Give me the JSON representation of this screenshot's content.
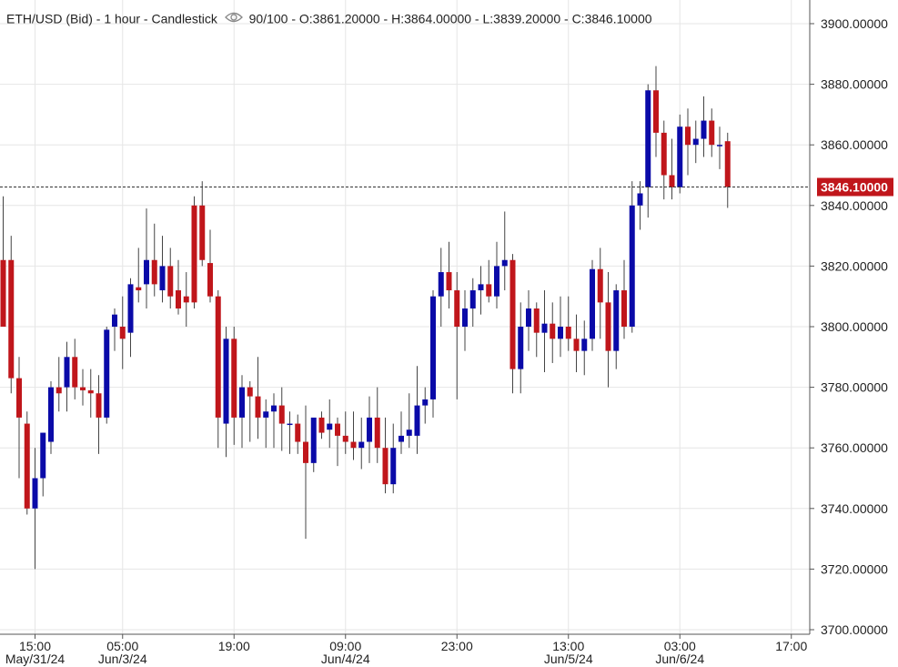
{
  "header": {
    "symbol": "ETH/USD (Bid) - 1 hour - Candlestick",
    "opacity": "90/100",
    "ohlc": "- O:3861.20000 - H:3864.00000 - L:3839.20000 - C:3846.10000",
    "eye_icon": "eye-icon"
  },
  "colors": {
    "up": "#0a0aa8",
    "down": "#c0161b",
    "grid": "#e6e6e6",
    "last_price_bg": "#c0161b"
  },
  "chart_data": {
    "type": "candlestick",
    "ylim": [
      3700,
      3904
    ],
    "y_ticks": [
      "3900.00000",
      "3880.00000",
      "3860.00000",
      "3840.00000",
      "3820.00000",
      "3800.00000",
      "3780.00000",
      "3760.00000",
      "3740.00000",
      "3720.00000",
      "3700.00000"
    ],
    "y_tick_values": [
      3900,
      3880,
      3860,
      3840,
      3820,
      3800,
      3780,
      3760,
      3740,
      3720,
      3700
    ],
    "x_ticks": [
      {
        "index": 4,
        "time": "15:00",
        "date": "May/31/24"
      },
      {
        "index": 15,
        "time": "05:00",
        "date": "Jun/3/24"
      },
      {
        "index": 29,
        "time": "19:00",
        "date": ""
      },
      {
        "index": 43,
        "time": "09:00",
        "date": "Jun/4/24"
      },
      {
        "index": 57,
        "time": "23:00",
        "date": ""
      },
      {
        "index": 71,
        "time": "13:00",
        "date": "Jun/5/24"
      },
      {
        "index": 85,
        "time": "03:00",
        "date": "Jun/6/24"
      },
      {
        "index": 99,
        "time": "17:00",
        "date": ""
      }
    ],
    "last_price": 3846.1,
    "last_price_label": "3846.10000",
    "candles": [
      [
        3822,
        3843,
        3800,
        3800
      ],
      [
        3822,
        3830,
        3778,
        3783
      ],
      [
        3783,
        3790,
        3750,
        3770
      ],
      [
        3768,
        3772,
        3738,
        3740
      ],
      [
        3740,
        3760,
        3720,
        3750
      ],
      [
        3750,
        3765,
        3744,
        3765
      ],
      [
        3762,
        3782,
        3758,
        3780
      ],
      [
        3780,
        3790,
        3772,
        3778
      ],
      [
        3780,
        3795,
        3772,
        3790
      ],
      [
        3790,
        3796,
        3776,
        3780
      ],
      [
        3780,
        3786,
        3774,
        3779
      ],
      [
        3779,
        3786,
        3770,
        3778
      ],
      [
        3778,
        3784,
        3758,
        3770
      ],
      [
        3770,
        3800,
        3768,
        3799
      ],
      [
        3800,
        3806,
        3792,
        3804
      ],
      [
        3800,
        3810,
        3786,
        3796
      ],
      [
        3798,
        3816,
        3790,
        3814
      ],
      [
        3813,
        3826,
        3808,
        3812
      ],
      [
        3814,
        3839,
        3806,
        3822
      ],
      [
        3822,
        3834,
        3810,
        3814
      ],
      [
        3812,
        3830,
        3808,
        3820
      ],
      [
        3820,
        3826,
        3806,
        3810
      ],
      [
        3812,
        3822,
        3804,
        3806
      ],
      [
        3810,
        3818,
        3800,
        3808
      ],
      [
        3840,
        3843,
        3806,
        3808
      ],
      [
        3840,
        3848,
        3820,
        3822
      ],
      [
        3821,
        3832,
        3808,
        3810
      ],
      [
        3810,
        3812,
        3760,
        3770
      ],
      [
        3768,
        3800,
        3757,
        3796
      ],
      [
        3796,
        3800,
        3761,
        3770
      ],
      [
        3770,
        3784,
        3760,
        3780
      ],
      [
        3780,
        3782,
        3762,
        3777
      ],
      [
        3777,
        3790,
        3763,
        3770
      ],
      [
        3770,
        3776,
        3760,
        3772
      ],
      [
        3772,
        3778,
        3760,
        3774
      ],
      [
        3774,
        3780,
        3759,
        3768
      ],
      [
        3768,
        3772,
        3758,
        3768
      ],
      [
        3768,
        3771,
        3758,
        3762
      ],
      [
        3762,
        3774,
        3730,
        3755
      ],
      [
        3755,
        3768,
        3752,
        3770
      ],
      [
        3770,
        3772,
        3763,
        3765
      ],
      [
        3766,
        3776,
        3760,
        3768
      ],
      [
        3768,
        3770,
        3754,
        3764
      ],
      [
        3764,
        3772,
        3758,
        3762
      ],
      [
        3762,
        3772,
        3756,
        3760
      ],
      [
        3760,
        3770,
        3753,
        3762
      ],
      [
        3762,
        3777,
        3755,
        3770
      ],
      [
        3770,
        3780,
        3755,
        3760
      ],
      [
        3760,
        3770,
        3745,
        3748
      ],
      [
        3748,
        3768,
        3745,
        3760
      ],
      [
        3762,
        3772,
        3758,
        3764
      ],
      [
        3764,
        3778,
        3760,
        3766
      ],
      [
        3764,
        3787,
        3758,
        3774
      ],
      [
        3774,
        3780,
        3768,
        3776
      ],
      [
        3776,
        3812,
        3770,
        3810
      ],
      [
        3810,
        3826,
        3800,
        3818
      ],
      [
        3818,
        3828,
        3806,
        3812
      ],
      [
        3812,
        3818,
        3776,
        3800
      ],
      [
        3800,
        3812,
        3792,
        3806
      ],
      [
        3806,
        3816,
        3800,
        3812
      ],
      [
        3812,
        3820,
        3804,
        3814
      ],
      [
        3814,
        3822,
        3808,
        3810
      ],
      [
        3810,
        3828,
        3806,
        3820
      ],
      [
        3820,
        3838,
        3812,
        3822
      ],
      [
        3822,
        3824,
        3778,
        3786
      ],
      [
        3786,
        3808,
        3778,
        3800
      ],
      [
        3800,
        3812,
        3792,
        3806
      ],
      [
        3806,
        3808,
        3790,
        3798
      ],
      [
        3798,
        3812,
        3785,
        3801
      ],
      [
        3801,
        3808,
        3788,
        3796
      ],
      [
        3796,
        3810,
        3790,
        3800
      ],
      [
        3800,
        3810,
        3792,
        3796
      ],
      [
        3796,
        3804,
        3785,
        3792
      ],
      [
        3792,
        3802,
        3784,
        3796
      ],
      [
        3796,
        3822,
        3792,
        3819
      ],
      [
        3819,
        3826,
        3796,
        3808
      ],
      [
        3808,
        3818,
        3780,
        3792
      ],
      [
        3792,
        3814,
        3786,
        3812
      ],
      [
        3812,
        3822,
        3796,
        3800
      ],
      [
        3800,
        3848,
        3798,
        3840
      ],
      [
        3840,
        3848,
        3832,
        3844
      ],
      [
        3846,
        3880,
        3836,
        3878
      ],
      [
        3878,
        3886,
        3856,
        3864
      ],
      [
        3864,
        3868,
        3842,
        3850
      ],
      [
        3850,
        3862,
        3842,
        3846
      ],
      [
        3846,
        3870,
        3844,
        3866
      ],
      [
        3866,
        3872,
        3850,
        3860
      ],
      [
        3860,
        3868,
        3854,
        3862
      ],
      [
        3862,
        3876,
        3856,
        3868
      ],
      [
        3868,
        3872,
        3856,
        3860
      ],
      [
        3860,
        3866,
        3852,
        3860
      ],
      [
        3861.2,
        3864,
        3839.2,
        3846.1
      ]
    ]
  }
}
